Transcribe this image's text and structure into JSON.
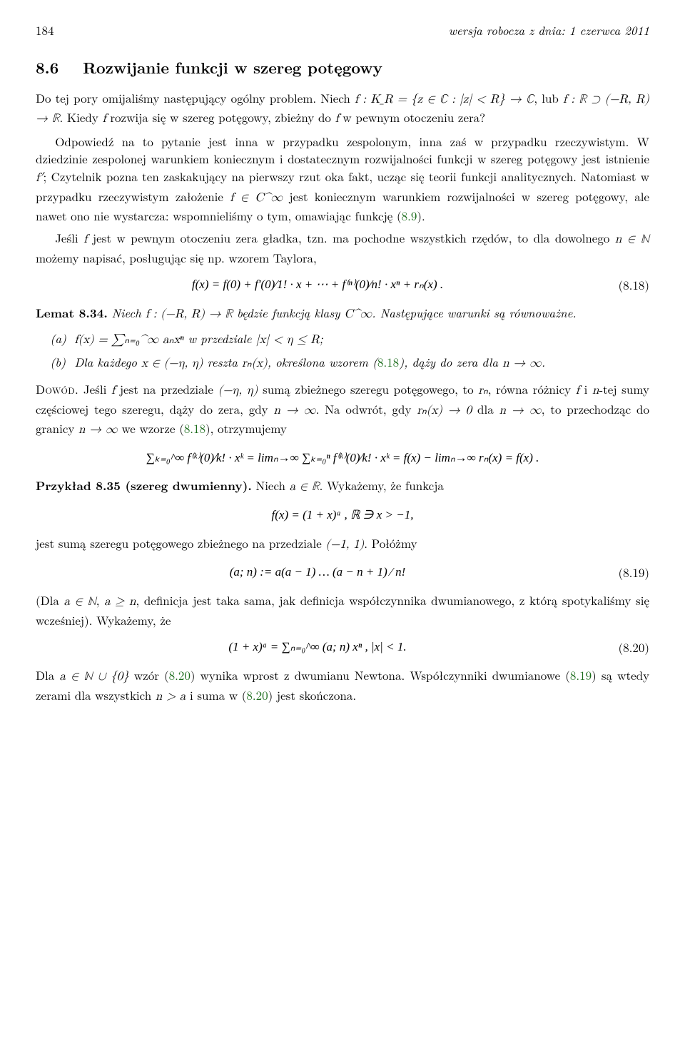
{
  "header": {
    "page": "184",
    "version": "wersja robocza z dnia: 1 czerwca 2011"
  },
  "section": {
    "number": "8.6",
    "title": "Rozwijanie funkcji w szereg potęgowy"
  },
  "para1a": "Do tej pory omijaliśmy następujący ogólny problem. Niech ",
  "para1b": "f : K_R = {z ∈ ℂ : |z| < R} → ℂ",
  "para1c": ", lub ",
  "para1d": "f : ℝ ⊃ (−R, R) → ℝ",
  "para1e": ". Kiedy ",
  "para1f": "f",
  "para1g": " rozwija się w szereg potęgowy, zbieżny do ",
  "para1h": "f",
  "para1i": " w pewnym otoczeniu zera?",
  "para2a": "Odpowiedź na to pytanie jest inna w przypadku zespolonym, inna zaś w przypadku rzeczywistym. W dziedzinie zespolonej warunkiem koniecznym i dostatecznym rozwijalności funkcji w szereg potęgowy jest istnienie ",
  "para2b": "f′",
  "para2c": "; Czytelnik pozna ten zaskakujący na pierwszy rzut oka fakt, ucząc się teorii funkcji analitycznych. Natomiast w przypadku rzeczywistym założenie ",
  "para2d": "f ∈ C^∞",
  "para2e": " jest koniecznym warunkiem rozwijalności w szereg potęgowy, ale nawet ono nie wystarcza: wspomnieliśmy o tym, omawiając funkcję (",
  "para2ref": "8.9",
  "para2f": ").",
  "para3a": "Jeśli ",
  "para3b": "f",
  "para3c": " jest w pewnym otoczeniu zera gładka, tzn. ma pochodne wszystkich rzędów, to dla dowolnego ",
  "para3d": "n ∈ ℕ",
  "para3e": " możemy napisać, posługując się np. wzorem Taylora,",
  "eq818": {
    "body": "f(x) = f(0) + f′(0)⁄1! · x + ⋯ + f⁽ⁿ⁾(0)⁄n! · xⁿ + rₙ(x) .",
    "num": "(8.18)"
  },
  "lemma": {
    "label": "Lemat 8.34.",
    "text_a": "Niech ",
    "text_b": "f : (−R, R) → ℝ",
    "text_c": " będzie funkcją klasy ",
    "text_d": "C^∞",
    "text_e": ". Następujące warunki są równoważne."
  },
  "item_a": {
    "lbl": "(a)",
    "t1": "f(x) = ∑ₙ₌₀^∞ aₙxⁿ",
    "t2": " w przedziale ",
    "t3": "|x| < η ≤ R",
    "t4": ";"
  },
  "item_b": {
    "lbl": "(b)",
    "t1": "Dla każdego ",
    "t2": "x ∈ (−η, η)",
    "t3": " reszta ",
    "t4": "rₙ(x)",
    "t5": ", określona wzorem (",
    "ref": "8.18",
    "t6": "), dąży do zera dla ",
    "t7": "n → ∞",
    "t8": "."
  },
  "dowod": {
    "label": "Dowód.",
    "t1": " Jeśli ",
    "t2": "f",
    "t3": " jest na przedziale ",
    "t4": "(−η, η)",
    "t5": " sumą zbieżnego szeregu potęgowego, to ",
    "t6": "rₙ",
    "t7": ", równa różnicy ",
    "t8": "f",
    "t9": " i ",
    "t10": "n",
    "t11": "-tej sumy częściowej tego szeregu, dąży do zera, gdy ",
    "t12": "n → ∞",
    "t13": ". Na odwrót, gdy ",
    "t14": "rₙ(x) → 0",
    "t15": " dla ",
    "t16": "n → ∞",
    "t17": ", to przechodząc do granicy ",
    "t18": "n → ∞",
    "t19": " we wzorze (",
    "ref": "8.18",
    "t20": "), otrzymujemy"
  },
  "eq_dowod": "∑ₖ₌₀^∞ f⁽ᵏ⁾(0)⁄k! · xᵏ  =  limₙ→∞ ∑ₖ₌₀ⁿ f⁽ᵏ⁾(0)⁄k! · xᵏ  =  f(x) − limₙ→∞ rₙ(x)  =  f(x) .",
  "przyklad": {
    "label": "Przykład 8.35 (szereg dwumienny).",
    "t1": " Niech ",
    "t2": "a ∈ ℝ",
    "t3": ". Wykażemy, że funkcja"
  },
  "eq_fx": "f(x) = (1 + x)ᵃ ,      ℝ ∋ x > −1,",
  "para4a": "jest sumą szeregu potęgowego zbieżnego na przedziale ",
  "para4b": "(−1, 1)",
  "para4c": ". Połóżmy",
  "eq819": {
    "body": "(a; n)  :=  a(a − 1) … (a − n + 1) ⁄ n!",
    "num": "(8.19)"
  },
  "para5a": "(Dla ",
  "para5b": "a ∈ ℕ",
  "para5c": ", ",
  "para5d": "a ≥ n",
  "para5e": ", definicja jest taka sama, jak definicja współczynnika dwumianowego, z którą spotykaliśmy się wcześniej). Wykażemy, że",
  "eq820": {
    "body": "(1 + x)ᵃ  =  ∑ₙ₌₀^∞ (a; n) xⁿ ,      |x| < 1.",
    "num": "(8.20)"
  },
  "para6a": "Dla ",
  "para6b": "a ∈ ℕ ∪ {0}",
  "para6c": " wzór (",
  "para6ref1": "8.20",
  "para6d": ") wynika wprost z dwumianu Newtona. Współczynniki dwumianowe (",
  "para6ref2": "8.19",
  "para6e": ") są wtedy zerami dla wszystkich ",
  "para6f": "n > a",
  "para6g": " i suma w (",
  "para6ref3": "8.20",
  "para6h": ") jest skończona.",
  "colors": {
    "ref": "#1a6b1a"
  }
}
